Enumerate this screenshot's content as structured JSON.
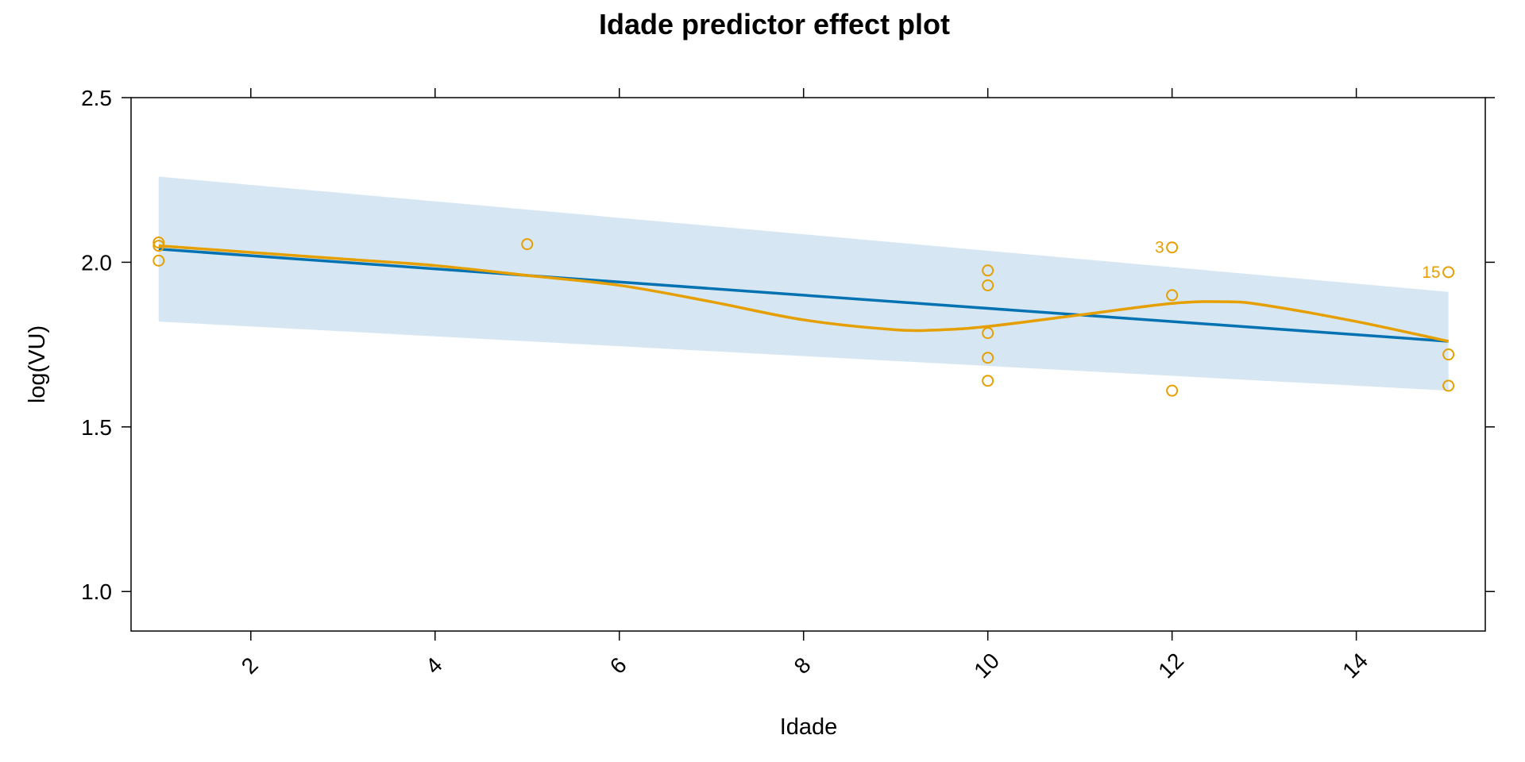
{
  "chart_data": {
    "type": "line",
    "title": "Idade predictor effect plot",
    "xlabel": "Idade",
    "ylabel": "log(VU)",
    "xlim": [
      0.7,
      15.4
    ],
    "ylim": [
      0.88,
      2.5
    ],
    "x_ticks": [
      2,
      4,
      6,
      8,
      10,
      12,
      14
    ],
    "x_tick_labels": [
      "2",
      "4",
      "6",
      "8",
      "10",
      "12",
      "14"
    ],
    "y_ticks": [
      1.0,
      1.5,
      2.0,
      2.5
    ],
    "y_tick_labels": [
      "1.0",
      "1.5",
      "2.0",
      "2.5"
    ],
    "grid": false,
    "colors": {
      "fit": "#0072B2",
      "band": "#D6E7F3",
      "smooth": "#E69F00",
      "points": "#E69F00"
    },
    "series": [
      {
        "kind": "fitted-line",
        "x": [
          1,
          15
        ],
        "y": [
          2.04,
          1.76
        ]
      },
      {
        "kind": "confidence-band",
        "x": [
          1,
          15
        ],
        "lower": [
          1.82,
          1.61
        ],
        "upper": [
          2.26,
          1.91
        ]
      },
      {
        "kind": "smooth-line",
        "x": [
          1,
          2,
          3,
          4,
          5,
          6,
          7,
          8,
          9,
          9.5,
          10,
          11,
          12,
          12.6,
          13,
          14,
          15
        ],
        "y": [
          2.05,
          2.03,
          2.01,
          1.99,
          1.96,
          1.93,
          1.88,
          1.825,
          1.795,
          1.795,
          1.805,
          1.84,
          1.875,
          1.88,
          1.87,
          1.82,
          1.76
        ]
      },
      {
        "kind": "residual-points",
        "points": [
          {
            "x": 1,
            "y": 2.06
          },
          {
            "x": 1,
            "y": 2.05
          },
          {
            "x": 1,
            "y": 2.005
          },
          {
            "x": 5,
            "y": 2.055
          },
          {
            "x": 10,
            "y": 1.975
          },
          {
            "x": 10,
            "y": 1.93
          },
          {
            "x": 10,
            "y": 1.785
          },
          {
            "x": 10,
            "y": 1.71
          },
          {
            "x": 10,
            "y": 1.64
          },
          {
            "x": 12,
            "y": 2.045,
            "label": "3"
          },
          {
            "x": 12,
            "y": 1.9
          },
          {
            "x": 12,
            "y": 1.61
          },
          {
            "x": 15,
            "y": 1.97,
            "label": "15"
          },
          {
            "x": 15,
            "y": 1.72
          },
          {
            "x": 15,
            "y": 1.625
          }
        ]
      }
    ]
  }
}
